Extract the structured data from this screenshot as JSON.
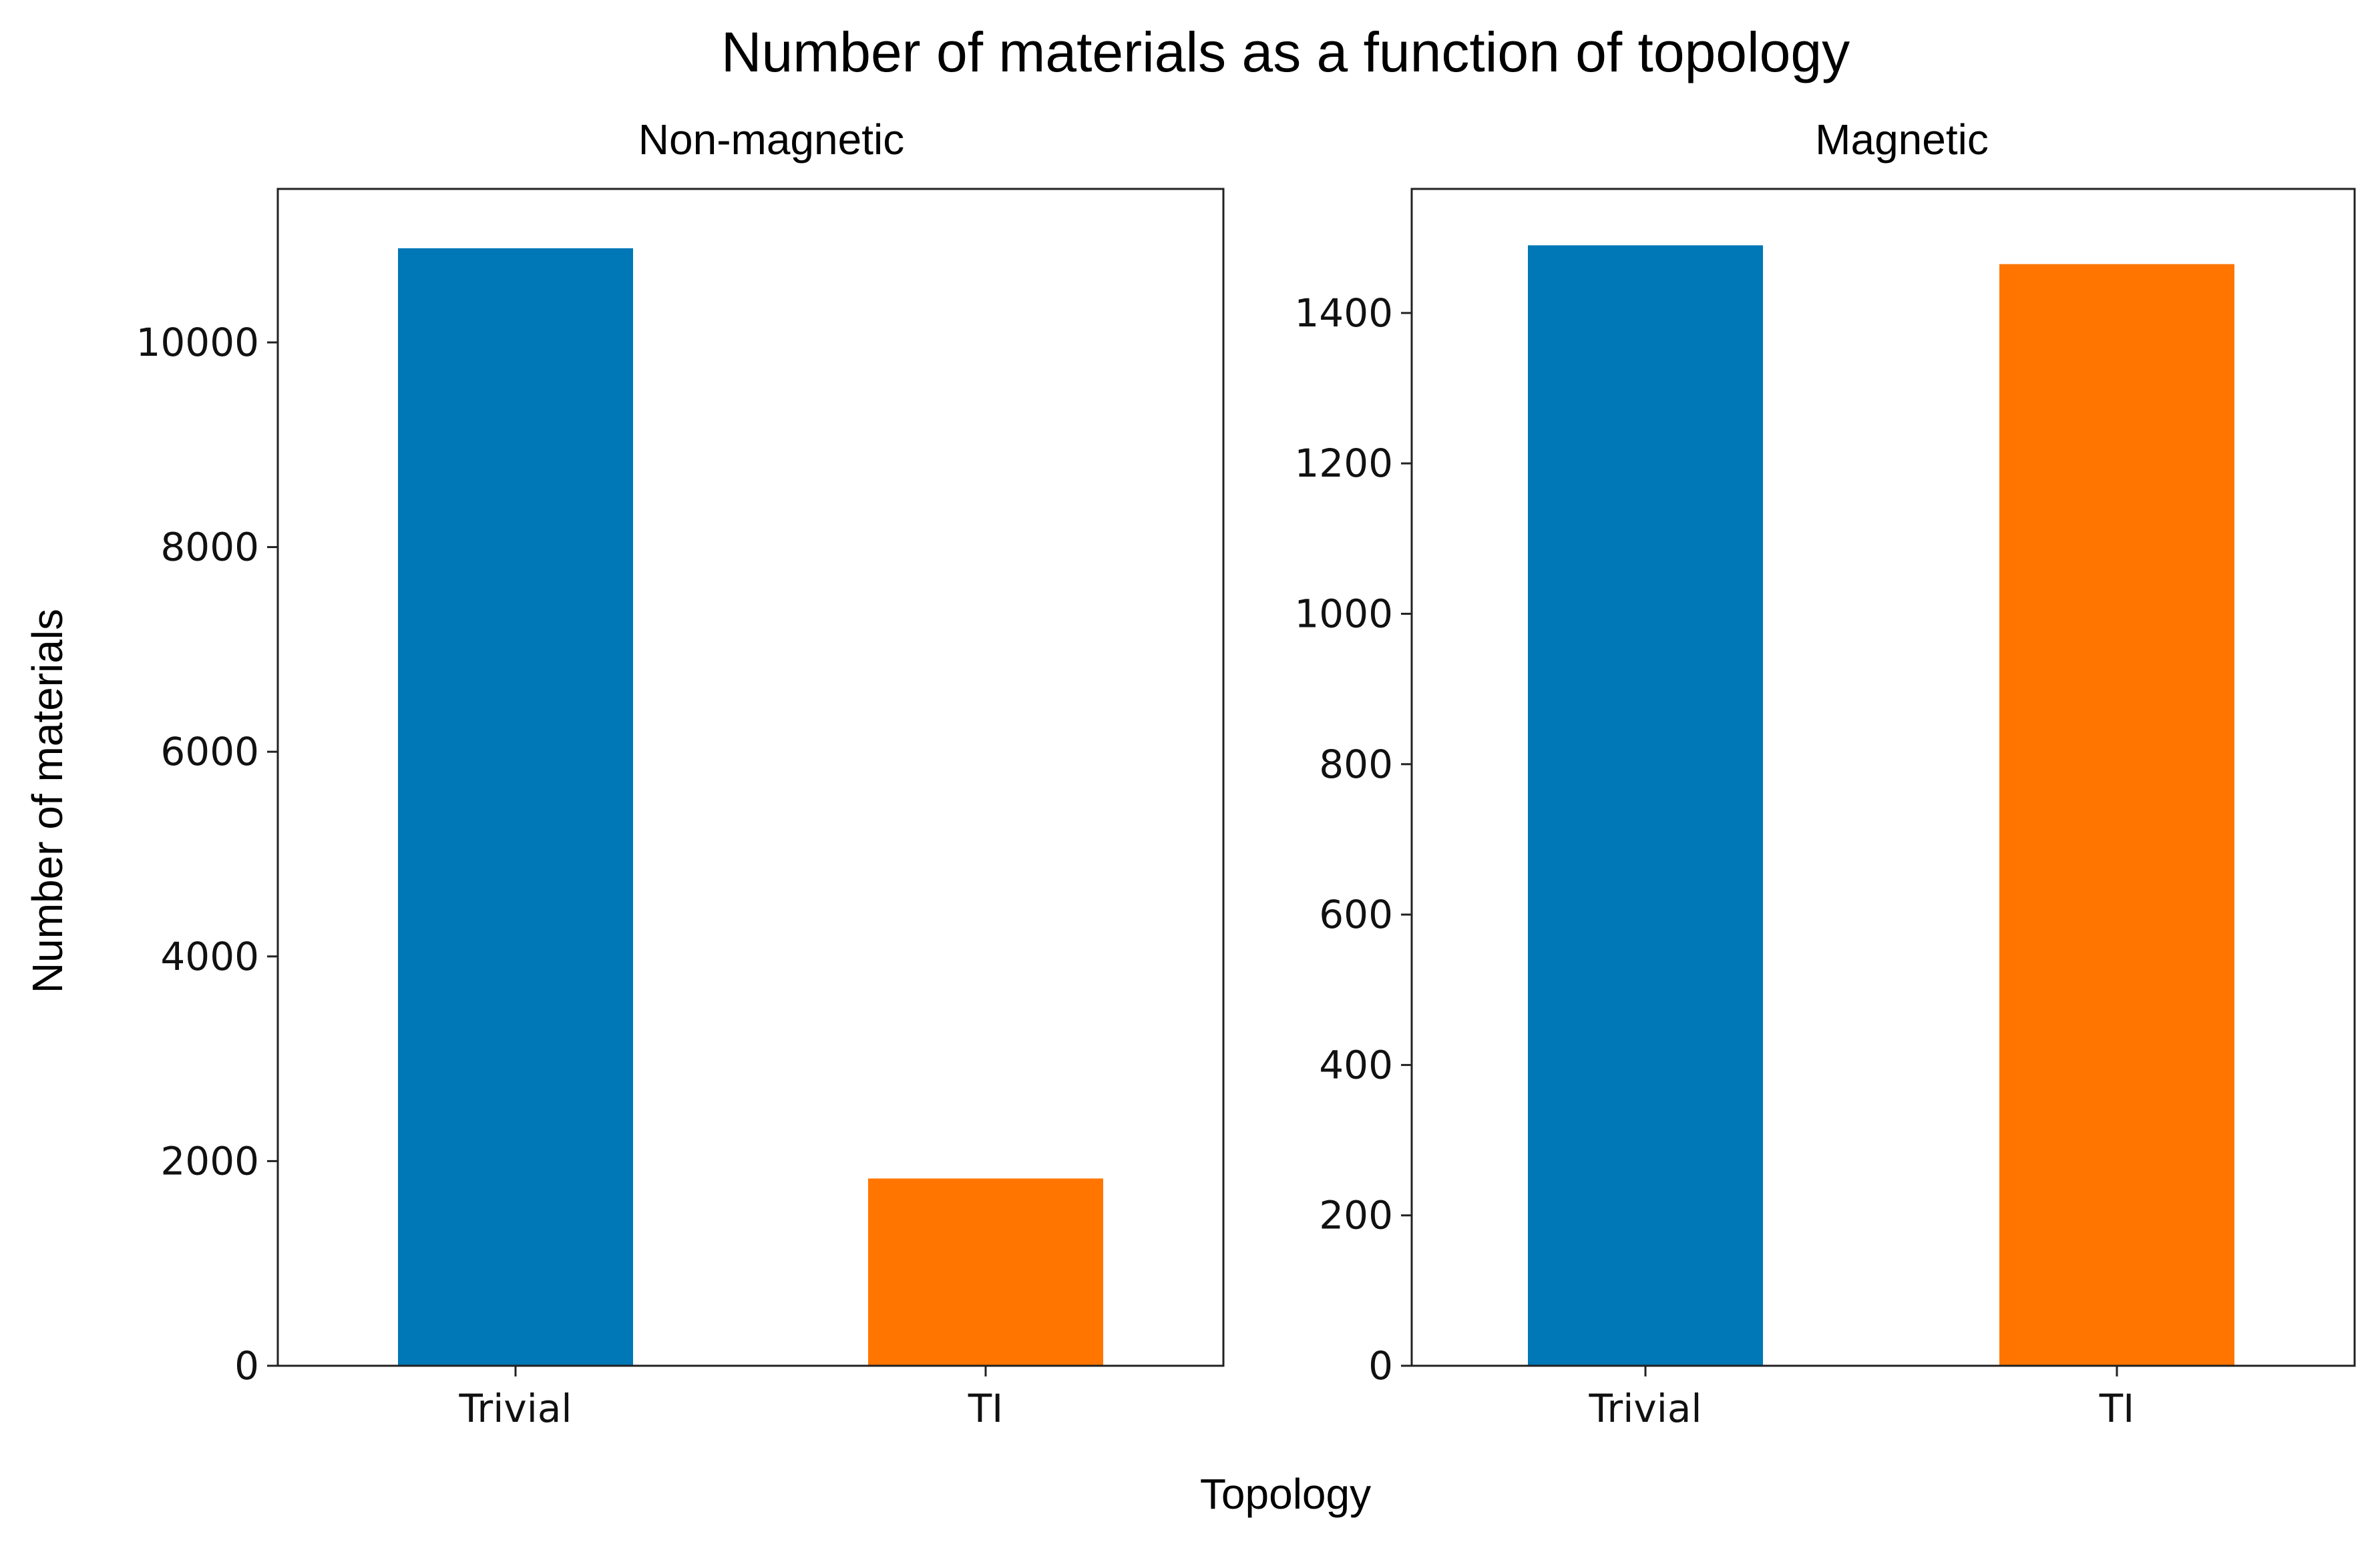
{
  "figure": {
    "title": "Number of materials as a function of topology",
    "xlabel": "Topology",
    "ylabel": "Number of materials"
  },
  "colors": {
    "trivial": "#0077b6",
    "ti": "#ff7500"
  },
  "chart_data": [
    {
      "type": "bar",
      "title": "Non-magnetic",
      "categories": [
        "Trivial",
        "TI"
      ],
      "values": [
        10920,
        1830
      ],
      "xlabel": "Topology",
      "ylabel": "Number of materials",
      "ylim": [
        0,
        11500
      ],
      "yticks": [
        0,
        2000,
        4000,
        6000,
        8000,
        10000
      ],
      "ytick_labels": [
        "0",
        "2000",
        "4000",
        "6000",
        "8000",
        "10000"
      ],
      "grid": false
    },
    {
      "type": "bar",
      "title": "Magnetic",
      "categories": [
        "Trivial",
        "TI"
      ],
      "values": [
        1490,
        1465
      ],
      "xlabel": "Topology",
      "ylabel": "Number of materials",
      "ylim": [
        0,
        1565
      ],
      "yticks": [
        0,
        200,
        400,
        600,
        800,
        1000,
        1200,
        1400
      ],
      "ytick_labels": [
        "0",
        "200",
        "400",
        "600",
        "800",
        "1000",
        "1200",
        "1400"
      ],
      "grid": false
    }
  ]
}
